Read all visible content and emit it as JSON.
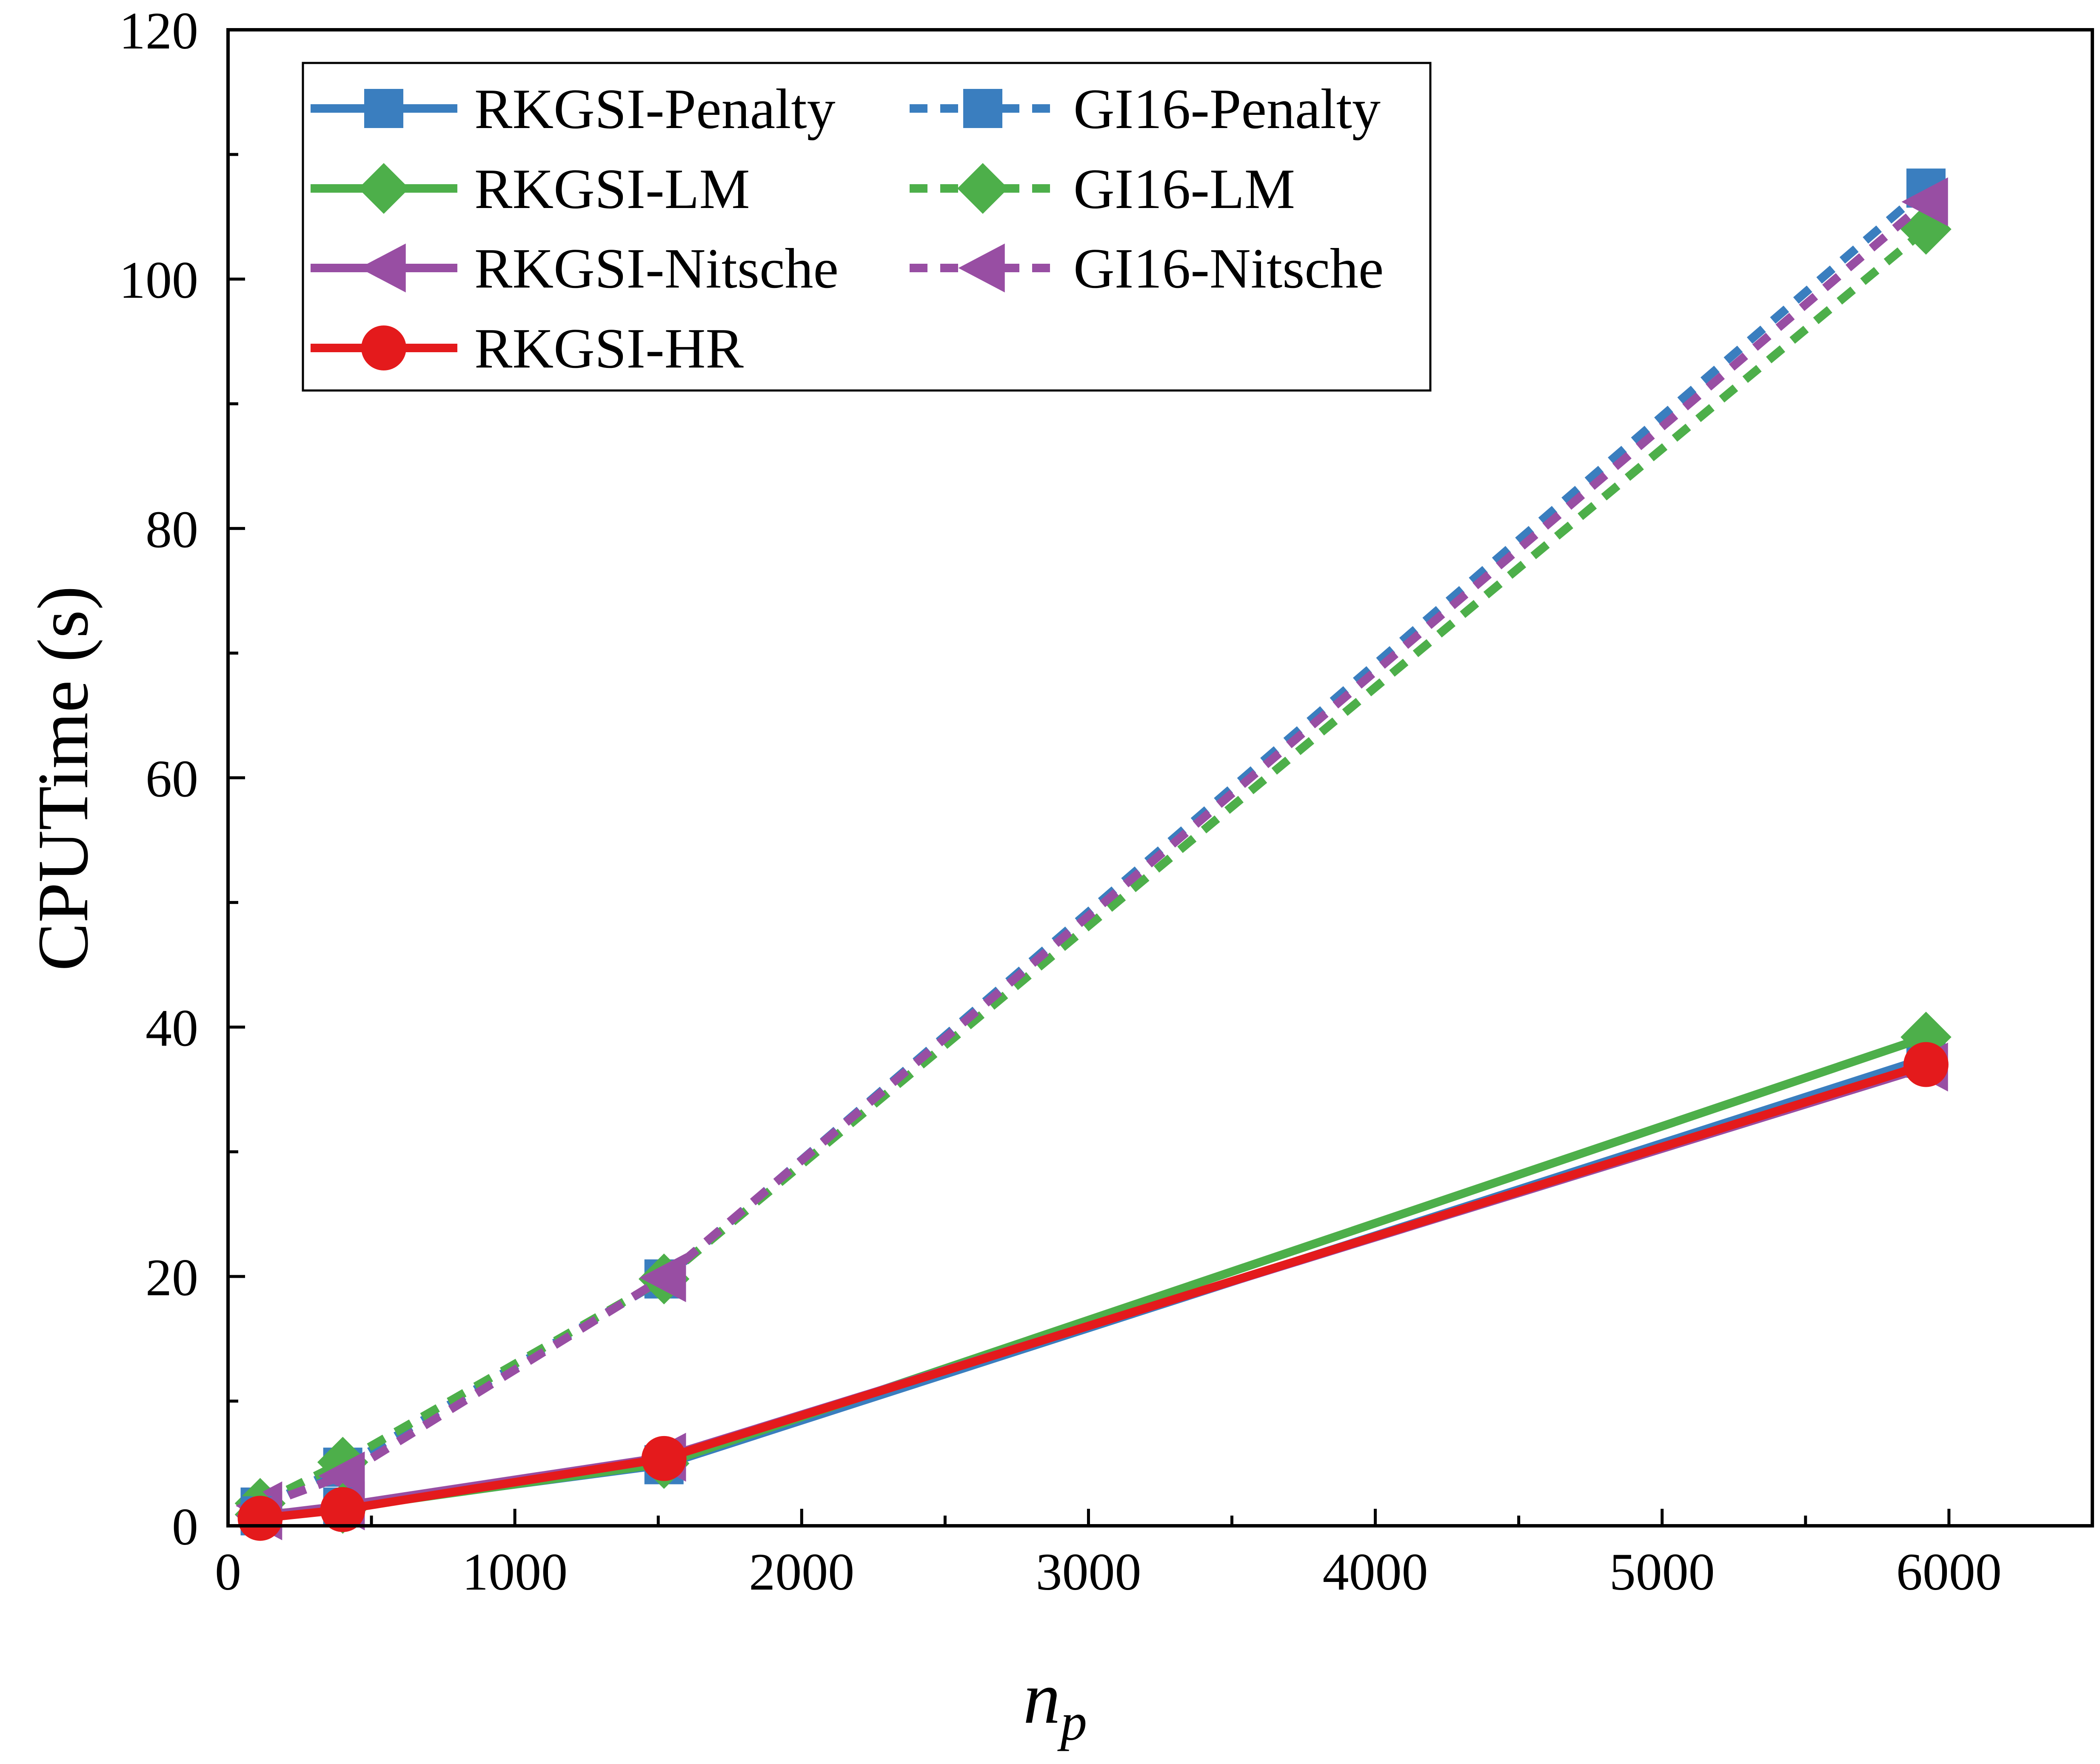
{
  "chart_data": {
    "type": "line",
    "title": "",
    "xlabel": "n",
    "xlabel_subscript": "p",
    "ylabel": "CPUTime (s)",
    "xlim": [
      0,
      6500
    ],
    "ylim": [
      0,
      120
    ],
    "xticks": [
      0,
      1000,
      2000,
      3000,
      4000,
      5000,
      6000
    ],
    "yticks": [
      0,
      20,
      40,
      60,
      80,
      100,
      120
    ],
    "x_minor_step": 500,
    "y_minor_step": 10,
    "grid": false,
    "legend_position": "top-left",
    "legend_columns": 2,
    "x": [
      112,
      400,
      1520,
      5920
    ],
    "series": [
      {
        "name": "RKGSI-Penalty",
        "values": [
          0.8,
          1.5,
          4.9,
          37.5
        ],
        "color": "#3a7ebf",
        "dash": "solid",
        "marker": "square"
      },
      {
        "name": "RKGSI-LM",
        "values": [
          0.9,
          1.4,
          5.0,
          39.2
        ],
        "color": "#4daf4a",
        "dash": "solid",
        "marker": "diamond"
      },
      {
        "name": "RKGSI-Nitsche",
        "values": [
          0.8,
          1.6,
          5.5,
          36.8
        ],
        "color": "#984ea3",
        "dash": "solid",
        "marker": "triangle-left"
      },
      {
        "name": "RKGSI-HR",
        "values": [
          0.6,
          1.3,
          5.4,
          37.0
        ],
        "color": "#e41a1c",
        "dash": "solid",
        "marker": "circle"
      },
      {
        "name": "GI16-Penalty",
        "values": [
          1.5,
          4.7,
          19.8,
          107.3
        ],
        "color": "#3a7ebf",
        "dash": "dashed",
        "marker": "square"
      },
      {
        "name": "GI16-LM",
        "values": [
          1.8,
          5.1,
          19.8,
          104.0
        ],
        "color": "#4daf4a",
        "dash": "dashed",
        "marker": "diamond"
      },
      {
        "name": "GI16-Nitsche",
        "values": [
          1.6,
          4.0,
          19.9,
          106.2
        ],
        "color": "#984ea3",
        "dash": "dashed",
        "marker": "triangle-left"
      }
    ]
  }
}
